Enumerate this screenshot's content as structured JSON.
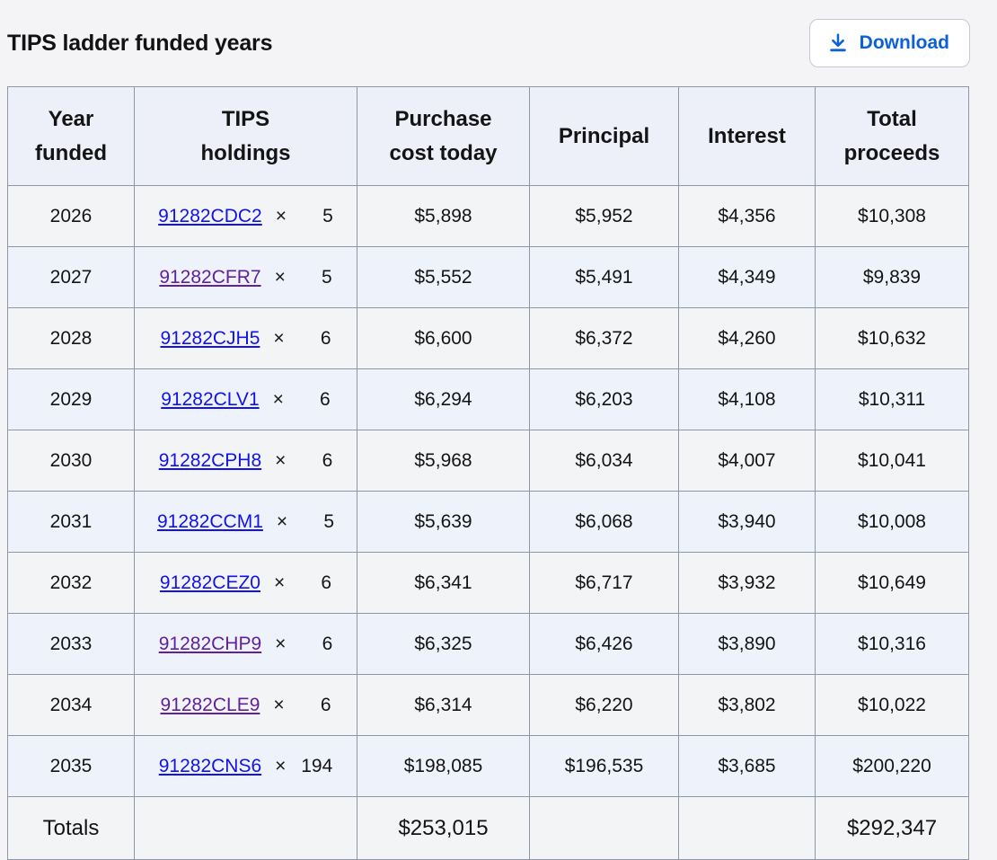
{
  "page": {
    "title": "TIPS ladder funded years"
  },
  "toolbar": {
    "download_label": "Download",
    "download_icon": "download-icon"
  },
  "colors": {
    "accent_blue": "#0c61d6",
    "link_blue": "#1212e9",
    "link_visited_purple": "#61219b",
    "header_bg": "#edeff9",
    "row_bg": "#f3f4f6",
    "row_alt_bg": "#eef2fb",
    "border": "#8f96a6"
  },
  "table": {
    "multiply_symbol": "×",
    "headers": [
      {
        "lines": [
          "Year",
          "funded"
        ]
      },
      {
        "lines": [
          "TIPS",
          "holdings"
        ]
      },
      {
        "lines": [
          "Purchase",
          "cost today"
        ]
      },
      {
        "lines": [
          "Principal"
        ]
      },
      {
        "lines": [
          "Interest"
        ]
      },
      {
        "lines": [
          "Total",
          "proceeds"
        ]
      }
    ],
    "rows": [
      {
        "year": "2026",
        "cusip": "91282CDC2",
        "cusip_visited": false,
        "quantity": "5",
        "purchase_cost": "$5,898",
        "principal": "$5,952",
        "interest": "$4,356",
        "total_proceeds": "$10,308"
      },
      {
        "year": "2027",
        "cusip": "91282CFR7",
        "cusip_visited": true,
        "quantity": "5",
        "purchase_cost": "$5,552",
        "principal": "$5,491",
        "interest": "$4,349",
        "total_proceeds": "$9,839"
      },
      {
        "year": "2028",
        "cusip": "91282CJH5",
        "cusip_visited": false,
        "quantity": "6",
        "purchase_cost": "$6,600",
        "principal": "$6,372",
        "interest": "$4,260",
        "total_proceeds": "$10,632"
      },
      {
        "year": "2029",
        "cusip": "91282CLV1",
        "cusip_visited": false,
        "quantity": "6",
        "purchase_cost": "$6,294",
        "principal": "$6,203",
        "interest": "$4,108",
        "total_proceeds": "$10,311"
      },
      {
        "year": "2030",
        "cusip": "91282CPH8",
        "cusip_visited": false,
        "quantity": "6",
        "purchase_cost": "$5,968",
        "principal": "$6,034",
        "interest": "$4,007",
        "total_proceeds": "$10,041"
      },
      {
        "year": "2031",
        "cusip": "91282CCM1",
        "cusip_visited": false,
        "quantity": "5",
        "purchase_cost": "$5,639",
        "principal": "$6,068",
        "interest": "$3,940",
        "total_proceeds": "$10,008"
      },
      {
        "year": "2032",
        "cusip": "91282CEZ0",
        "cusip_visited": false,
        "quantity": "6",
        "purchase_cost": "$6,341",
        "principal": "$6,717",
        "interest": "$3,932",
        "total_proceeds": "$10,649"
      },
      {
        "year": "2033",
        "cusip": "91282CHP9",
        "cusip_visited": true,
        "quantity": "6",
        "purchase_cost": "$6,325",
        "principal": "$6,426",
        "interest": "$3,890",
        "total_proceeds": "$10,316"
      },
      {
        "year": "2034",
        "cusip": "91282CLE9",
        "cusip_visited": true,
        "quantity": "6",
        "purchase_cost": "$6,314",
        "principal": "$6,220",
        "interest": "$3,802",
        "total_proceeds": "$10,022"
      },
      {
        "year": "2035",
        "cusip": "91282CNS6",
        "cusip_visited": false,
        "quantity": "194",
        "purchase_cost": "$198,085",
        "principal": "$196,535",
        "interest": "$3,685",
        "total_proceeds": "$200,220"
      }
    ],
    "totals": {
      "label": "Totals",
      "purchase_cost": "$253,015",
      "total_proceeds": "$292,347"
    }
  }
}
